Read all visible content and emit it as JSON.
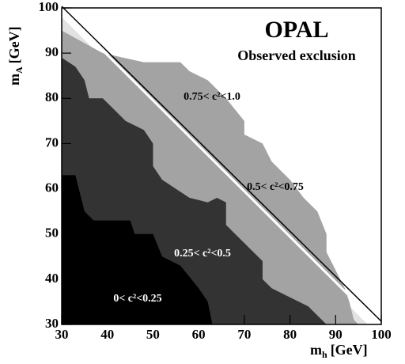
{
  "chart_data": {
    "type": "area",
    "title": "OPAL",
    "subtitle": "Observed exclusion",
    "xlabel": {
      "symbol": "m",
      "subscript": "h",
      "unit": "[GeV]"
    },
    "ylabel": {
      "symbol": "m",
      "subscript": "A",
      "unit": "[GeV]"
    },
    "xlim": [
      30,
      100
    ],
    "ylim": [
      30,
      100
    ],
    "xticks": [
      30,
      40,
      50,
      60,
      70,
      80,
      90,
      100
    ],
    "yticks": [
      30,
      40,
      50,
      60,
      70,
      80,
      90,
      100
    ],
    "series": [
      {
        "name": "0.75< c²<1.0",
        "color": "#e2e2e2",
        "x": [
          30,
          30,
          97,
          30
        ],
        "y": [
          30,
          98,
          30,
          30
        ]
      },
      {
        "name": "0.5< c²<0.75",
        "color": "#a3a3a3",
        "x": [
          30,
          30,
          39,
          48,
          56,
          58,
          62,
          66,
          70,
          70,
          74,
          76,
          80,
          83,
          86,
          88,
          88,
          90,
          92,
          93,
          94,
          95,
          30
        ],
        "y": [
          30,
          95,
          90,
          88,
          88,
          86,
          84,
          80,
          75,
          72,
          70,
          66,
          62,
          58,
          55,
          50,
          46,
          42,
          38,
          35,
          31,
          30,
          30
        ]
      },
      {
        "name": "0.25< c²<0.5",
        "color": "#333333",
        "x": [
          30,
          30,
          33,
          35,
          36,
          39,
          42,
          44,
          48,
          50,
          50,
          52,
          55,
          58,
          62,
          64,
          66,
          66,
          68,
          70,
          72,
          74,
          74,
          76,
          80,
          84,
          86,
          88,
          30
        ],
        "y": [
          30,
          89,
          87,
          84,
          80,
          80,
          77,
          75,
          73,
          70,
          65,
          62,
          60,
          58,
          57,
          58,
          57,
          52,
          50,
          48,
          46,
          44,
          40,
          38,
          36,
          34,
          32,
          30,
          30
        ]
      },
      {
        "name": "0< c²<0.25",
        "color": "#000000",
        "x": [
          30,
          30,
          33,
          35,
          37,
          45,
          46,
          50,
          52,
          56,
          60,
          62,
          63,
          30
        ],
        "y": [
          30,
          63,
          63,
          55,
          53,
          53,
          50,
          50,
          45,
          43,
          38,
          35,
          30,
          30
        ]
      }
    ]
  }
}
